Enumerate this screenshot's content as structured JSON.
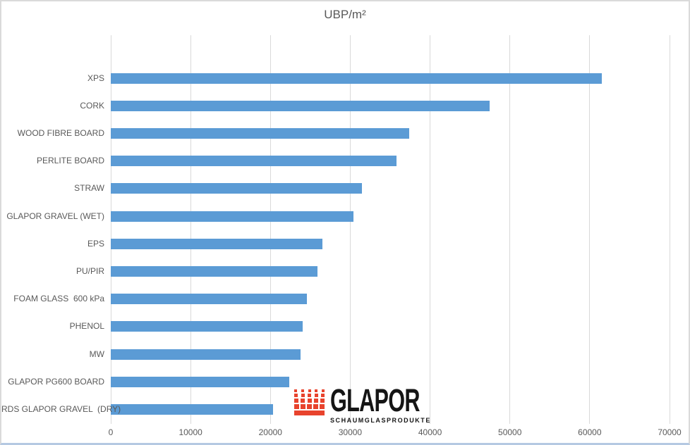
{
  "chart_data": {
    "type": "bar",
    "orientation": "horizontal",
    "title": "UBP/m²",
    "categories": [
      "XPS",
      "CORK",
      "WOOD FIBRE BOARD",
      "PERLITE BOARD",
      "STRAW",
      "GLAPOR GRAVEL (WET)",
      "EPS",
      "PU/PIR",
      "FOAM GLASS  600 kPa",
      "PHENOL",
      "MW",
      "GLAPOR PG600 BOARD",
      "RDS GLAPOR GRAVEL  (DRY)"
    ],
    "values": [
      61500,
      47500,
      37400,
      35800,
      31500,
      30400,
      26500,
      25900,
      24600,
      24000,
      23800,
      22400,
      20300
    ],
    "xlabel": "",
    "ylabel": "",
    "xlim": [
      0,
      70000
    ],
    "x_ticks": [
      0,
      10000,
      20000,
      30000,
      40000,
      50000,
      60000,
      70000
    ],
    "grid": "vertical-only",
    "legend": "none",
    "bar_color": "#5b9bd5",
    "gridline_color": "#d9d9d9",
    "text_color": "#595959"
  },
  "logo": {
    "name": "GLAPOR",
    "subtitle": "SCHAUMGLASPRODUKTE",
    "icon": "red-squares-grid-icon",
    "icon_color": "#e8432d",
    "text_color": "#151515"
  }
}
